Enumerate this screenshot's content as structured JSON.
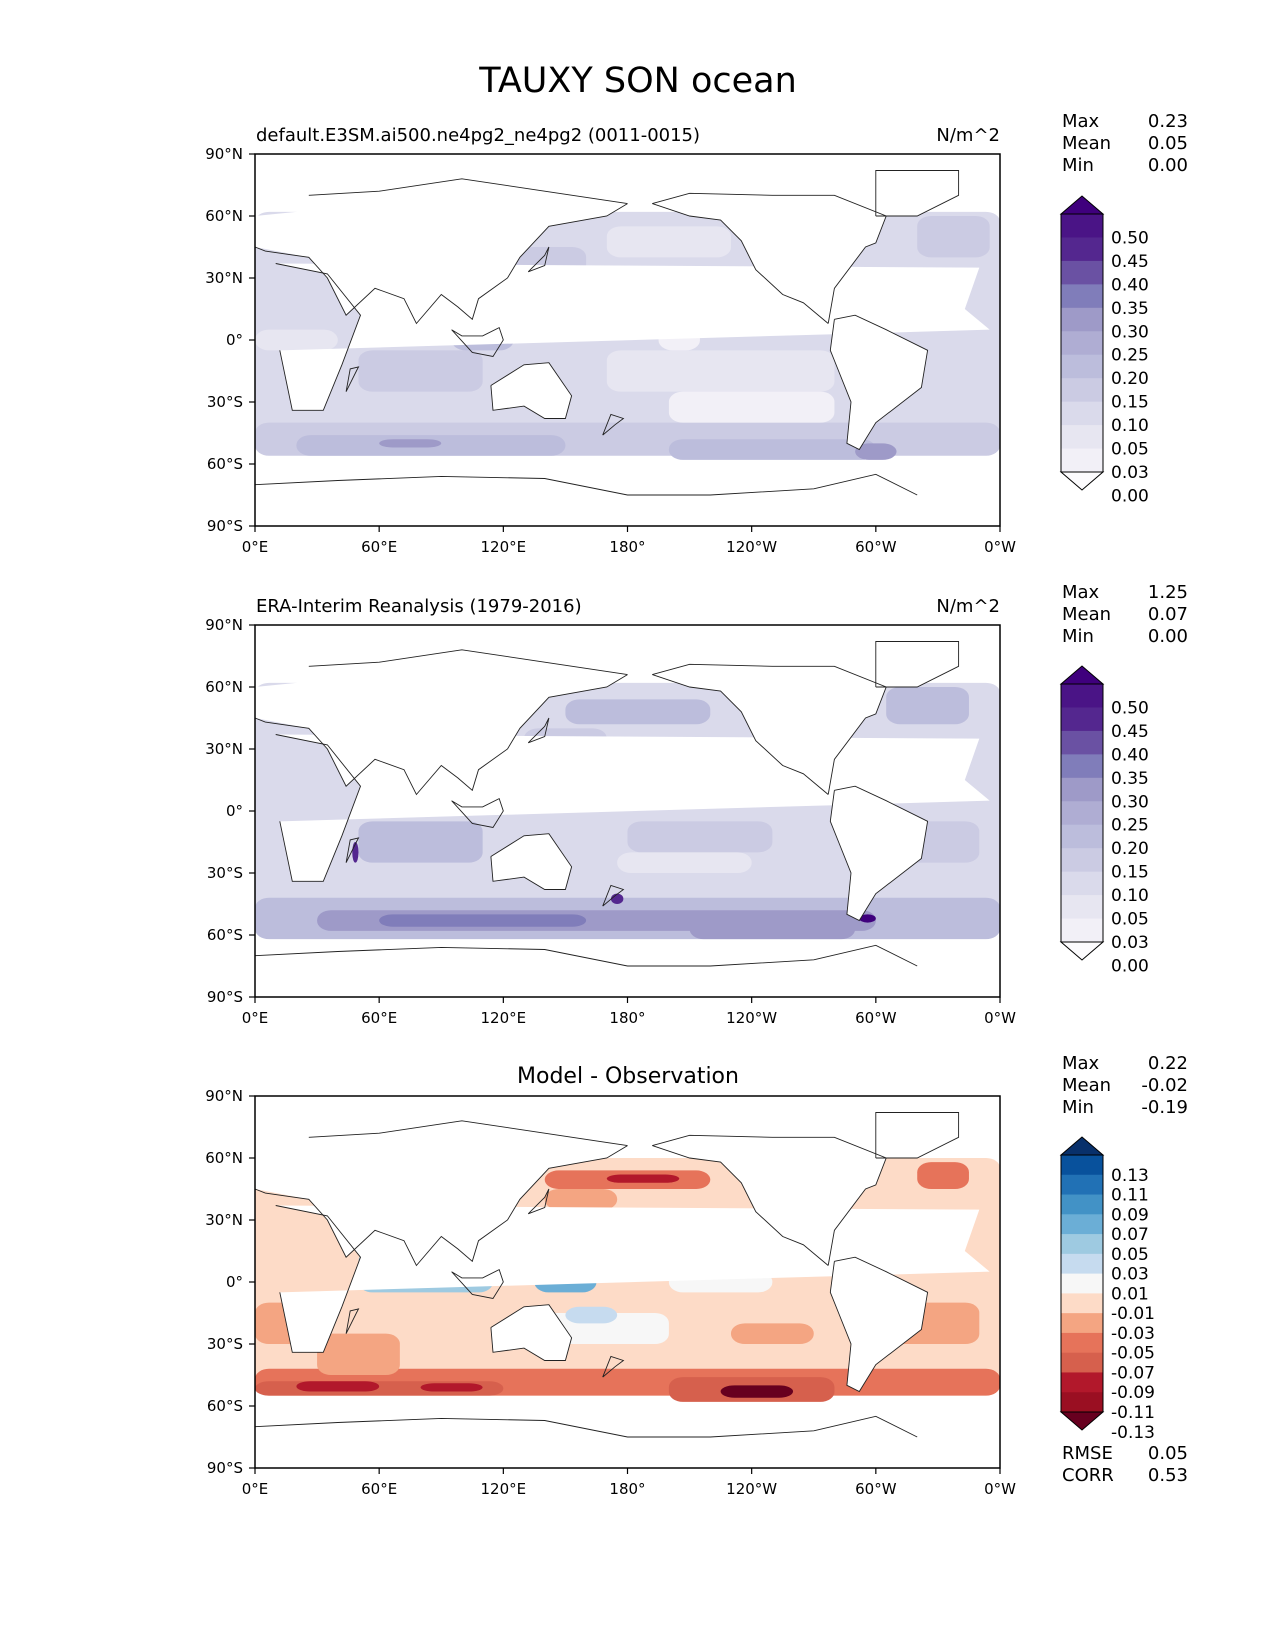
{
  "title": "TAUXY SON ocean",
  "axes": {
    "lat_ticks": [
      "90°N",
      "60°N",
      "30°N",
      "0°",
      "30°S",
      "60°S",
      "90°S"
    ],
    "lon_ticks": [
      "0°E",
      "60°E",
      "120°E",
      "180°",
      "120°W",
      "60°W",
      "0°W"
    ]
  },
  "panels": [
    {
      "left_title": "default.E3SM.ai500.ne4pg2_ne4pg2 (0011-0015)",
      "center_title": "",
      "units": "N/m^2",
      "stats": [
        [
          "Max",
          "0.23"
        ],
        [
          "Mean",
          "0.05"
        ],
        [
          "Min",
          "0.00"
        ]
      ],
      "colorbar": {
        "labels": [
          "0.50",
          "0.45",
          "0.40",
          "0.35",
          "0.30",
          "0.25",
          "0.20",
          "0.15",
          "0.10",
          "0.05",
          "0.03",
          "0.00"
        ],
        "colors": [
          "#3f007d",
          "#4a1486",
          "#54278f",
          "#6a51a3",
          "#807dba",
          "#9e9ac8",
          "#afadd3",
          "#bcbddc",
          "#cbcbe3",
          "#dadaeb",
          "#e7e6f1",
          "#f2f0f7",
          "#fcfbfd"
        ]
      },
      "field": "model"
    },
    {
      "left_title": "ERA-Interim Reanalysis (1979-2016)",
      "center_title": "",
      "units": "N/m^2",
      "stats": [
        [
          "Max",
          "1.25"
        ],
        [
          "Mean",
          "0.07"
        ],
        [
          "Min",
          "0.00"
        ]
      ],
      "colorbar": {
        "labels": [
          "0.50",
          "0.45",
          "0.40",
          "0.35",
          "0.30",
          "0.25",
          "0.20",
          "0.15",
          "0.10",
          "0.05",
          "0.03",
          "0.00"
        ],
        "colors": [
          "#3f007d",
          "#4a1486",
          "#54278f",
          "#6a51a3",
          "#807dba",
          "#9e9ac8",
          "#afadd3",
          "#bcbddc",
          "#cbcbe3",
          "#dadaeb",
          "#e7e6f1",
          "#f2f0f7",
          "#fcfbfd"
        ]
      },
      "field": "obs"
    },
    {
      "left_title": "",
      "center_title": "Model - Observation",
      "units": "",
      "stats": [
        [
          "Max",
          "0.22"
        ],
        [
          "Mean",
          "-0.02"
        ],
        [
          "Min",
          "-0.19"
        ]
      ],
      "colorbar": {
        "labels": [
          "0.13",
          "0.11",
          "0.09",
          "0.07",
          "0.05",
          "0.03",
          "0.01",
          "-0.01",
          "-0.03",
          "-0.05",
          "-0.07",
          "-0.09",
          "-0.11",
          "-0.13"
        ],
        "colors": [
          "#08306b",
          "#08519c",
          "#2171b5",
          "#4292c6",
          "#6baed6",
          "#9ecae1",
          "#c6dbef",
          "#f7f7f7",
          "#fddbc7",
          "#f4a582",
          "#e6735a",
          "#d6604d",
          "#b2182b",
          "#9a0f22",
          "#67001f"
        ]
      },
      "footer": [
        [
          "RMSE",
          "0.05"
        ],
        [
          "CORR",
          "0.53"
        ]
      ],
      "field": "diff"
    }
  ]
}
